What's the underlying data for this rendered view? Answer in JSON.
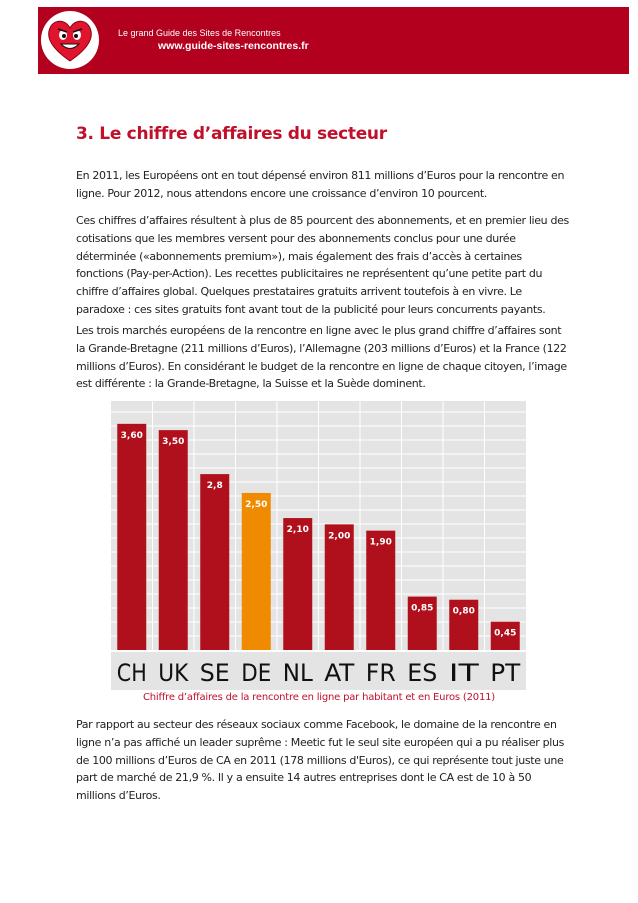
{
  "header": {
    "line1": "Le grand Guide des Sites de Rencontres",
    "line2": "www.guide-sites-rencontres.fr",
    "logo_icon": "heart-face-icon",
    "brand_color": "#b2001e"
  },
  "section_title": "3. Le chiffre d’affaires du secteur",
  "paragraphs": [
    "En 2011, les Européens ont en tout dépensé environ 811 millions d’Euros pour la rencontre en ligne. Pour 2012, nous attendons encore une croissance d’environ 10 pourcent.",
    "Ces chiffres d’affaires résultent à plus de 85 pourcent des abonnements, et en premier lieu des cotisations que les membres versent pour des abonnements conclus pour une durée déterminée («abonnements premium»), mais également des frais d’accès à certaines fonctions (Pay-per-Action). Les recettes publicitaires ne représentent qu’une petite part du chiffre d’affaires global. Quelques prestataires gratuits arrivent toutefois à en vivre. Le paradoxe : ces sites gratuits font avant tout de la publicité pour leurs concurrents payants.",
    "Les trois marchés européens de la rencontre en ligne avec le plus grand chiffre d’affaires sont la Grande-Bretagne (211 millions d’Euros), l’Allemagne (203 millions d’Euros) et la France (122 millions d’Euros).  En considérant le budget de la rencontre en ligne de chaque citoyen, l’image est différente : la Grande-Bretagne, la Suisse et la Suède dominent.",
    "Par rapport au secteur des réseaux sociaux comme Facebook, le domaine de la rencontre en ligne n’a pas affiché un leader suprême : Meetic fut le seul site européen qui a pu réaliser plus de 100 millions d’Euros de CA en 2011 (178 millions d'Euros), ce qui représente tout juste une part de marché de 21,9 %. Il y a ensuite 14 autres entreprises dont le CA est de 10 à 50 millions d’Euros."
  ],
  "chart_caption": "Chiffre d’affaires de la rencontre en ligne par habitant et en Euros (2011)",
  "chart_data": {
    "type": "bar",
    "categories": [
      "CH",
      "UK",
      "SE",
      "DE",
      "NL",
      "AT",
      "FR",
      "ES",
      "IT",
      "PT"
    ],
    "values": [
      3.6,
      3.5,
      2.8,
      2.5,
      2.1,
      2.0,
      1.9,
      0.85,
      0.8,
      0.45
    ],
    "value_labels": [
      "3,60",
      "3,50",
      "2,8",
      "2,50",
      "2,10",
      "2,00",
      "1,90",
      "0,85",
      "0,80",
      "0,45"
    ],
    "highlight_category": "DE",
    "colors": {
      "bar": "#b0101c",
      "highlight": "#f08a00",
      "background": "#e4e4e4",
      "grid": "#ffffff"
    },
    "title": "",
    "xlabel": "",
    "ylabel": "",
    "ylim": [
      0,
      3.9
    ],
    "grid": true,
    "legend": "none"
  }
}
